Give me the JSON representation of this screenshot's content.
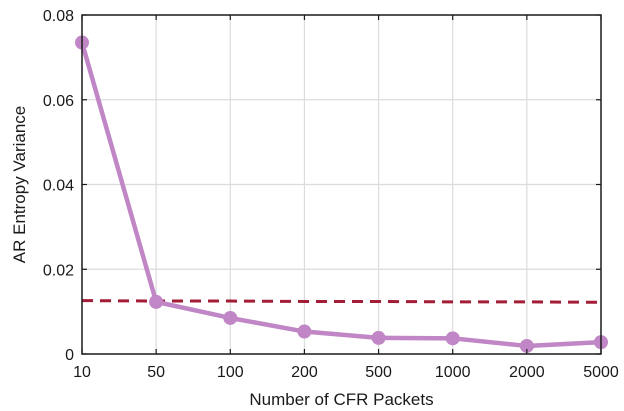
{
  "chart_data": {
    "type": "line",
    "title": "",
    "xlabel": "Number of CFR Packets",
    "ylabel": "AR Entropy Variance",
    "categories": [
      "10",
      "50",
      "100",
      "200",
      "500",
      "1000",
      "2000",
      "5000"
    ],
    "ylim": [
      0,
      0.08
    ],
    "y_ticks": [
      "0",
      "0.02",
      "0.04",
      "0.06",
      "0.08"
    ],
    "grid": true,
    "legend": "none",
    "series": [
      {
        "color": "#c086c6",
        "style": "solid-with-markers",
        "values": [
          0.0735,
          0.0123,
          0.0085,
          0.0053,
          0.0038,
          0.0037,
          0.0019,
          0.0028
        ]
      },
      {
        "color": "#a31d36",
        "style": "dashed",
        "values": [
          0.0126,
          0.0125,
          0.0125,
          0.0124,
          0.0124,
          0.0123,
          0.0123,
          0.0122
        ]
      }
    ]
  }
}
